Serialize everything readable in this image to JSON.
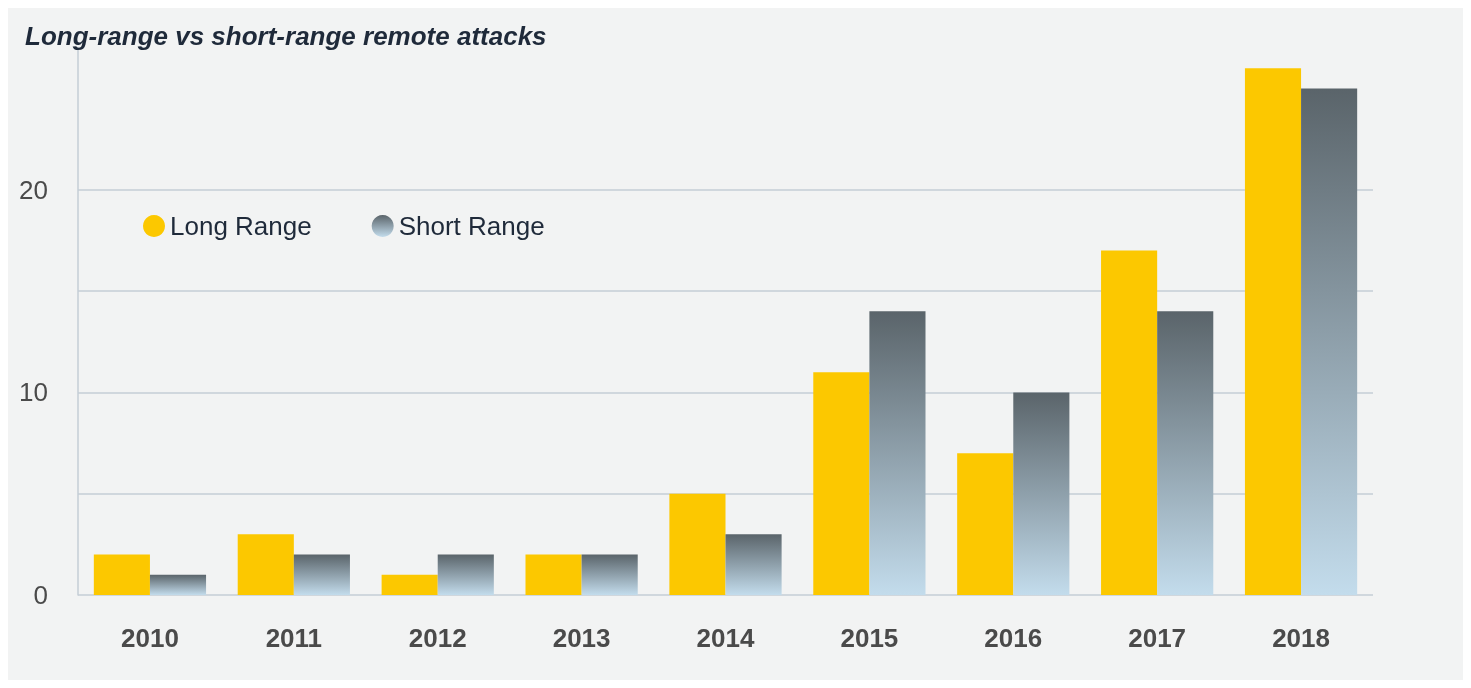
{
  "chart_data": {
    "type": "bar",
    "title": "Long-range vs short-range remote attacks",
    "categories": [
      "2010",
      "2011",
      "2012",
      "2013",
      "2014",
      "2015",
      "2016",
      "2017",
      "2018"
    ],
    "series": [
      {
        "name": "Long Range",
        "color": "#fcc800",
        "values": [
          2,
          3,
          1,
          2,
          5,
          11,
          7,
          17,
          26
        ]
      },
      {
        "name": "Short Range",
        "color": "#5a646a",
        "values": [
          1,
          2,
          2,
          2,
          3,
          14,
          10,
          14,
          25
        ]
      }
    ],
    "ylim": [
      0,
      27
    ],
    "yticks": [
      0,
      {
        "value": 5,
        "label": null
      },
      10,
      {
        "value": 15,
        "label": null
      },
      20
    ],
    "grid": "y",
    "legend": "top left"
  }
}
